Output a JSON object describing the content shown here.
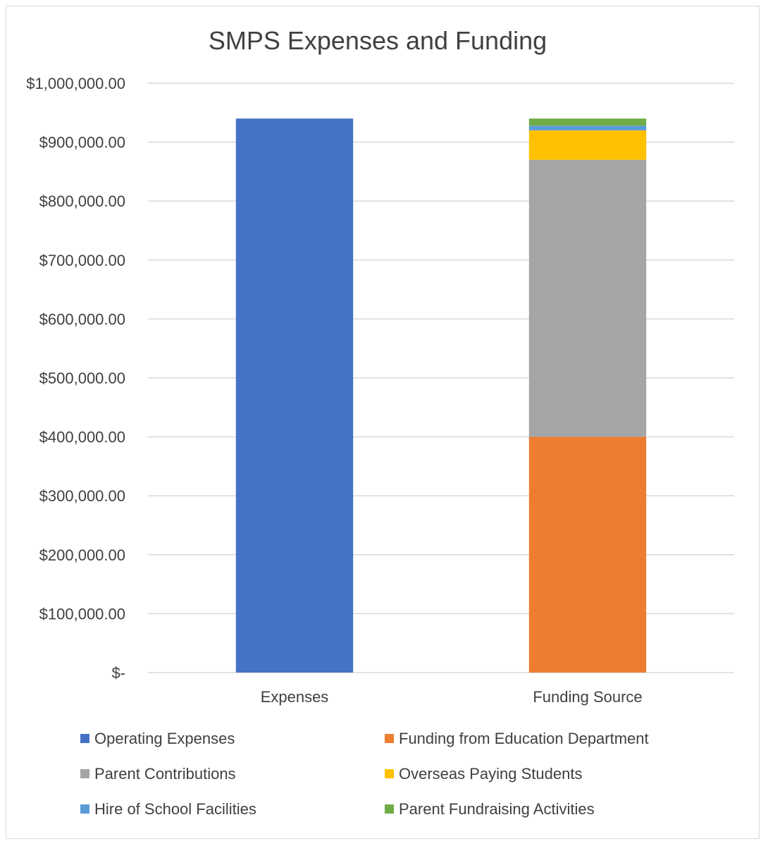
{
  "chart_data": {
    "type": "bar",
    "stacked": true,
    "title": "SMPS Expenses and Funding",
    "xlabel": "",
    "ylabel": "",
    "categories": [
      "Expenses",
      "Funding Source"
    ],
    "ylim": [
      0,
      1000000
    ],
    "ytick_values": [
      0,
      100000,
      200000,
      300000,
      400000,
      500000,
      600000,
      700000,
      800000,
      900000,
      1000000
    ],
    "ytick_labels": [
      "$-",
      "$100,000.00",
      "$200,000.00",
      "$300,000.00",
      "$400,000.00",
      "$500,000.00",
      "$600,000.00",
      "$700,000.00",
      "$800,000.00",
      "$900,000.00",
      "$1,000,000.00"
    ],
    "grid": true,
    "legend_position": "bottom",
    "series": [
      {
        "name": "Operating Expenses",
        "color": "#4472C4",
        "values": [
          940000,
          0
        ]
      },
      {
        "name": "Funding from Education Department",
        "color": "#ED7D31",
        "values": [
          0,
          400000
        ]
      },
      {
        "name": "Parent Contributions",
        "color": "#A5A5A5",
        "values": [
          0,
          470000
        ]
      },
      {
        "name": "Overseas Paying Students",
        "color": "#FFC000",
        "values": [
          0,
          50000
        ]
      },
      {
        "name": "Hire of School Facilities",
        "color": "#5B9BD5",
        "values": [
          0,
          8000
        ]
      },
      {
        "name": "Parent Fundraising Activities",
        "color": "#70AD47",
        "values": [
          0,
          12000
        ]
      }
    ]
  }
}
